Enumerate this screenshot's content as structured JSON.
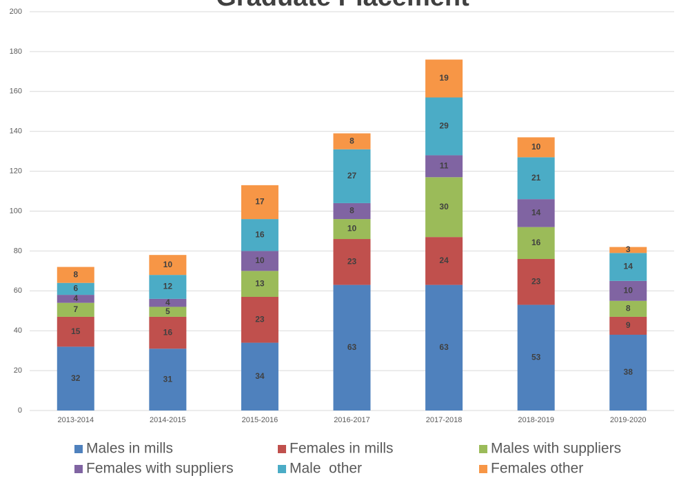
{
  "chart_data": {
    "type": "stacked_bar",
    "title": "Graduate Placement",
    "categories": [
      "2013-2014",
      "2014-2015",
      "2015-2016",
      "2016-2017",
      "2017-2018",
      "2018-2019",
      "2019-2020"
    ],
    "series": [
      {
        "name": "Males in mills",
        "color": "#4f81bd",
        "values": [
          32,
          31,
          34,
          63,
          63,
          53,
          38
        ]
      },
      {
        "name": "Females in mills",
        "color": "#c0504d",
        "values": [
          15,
          16,
          23,
          23,
          24,
          23,
          9
        ]
      },
      {
        "name": "Males with suppliers",
        "color": "#9bbb59",
        "values": [
          7,
          5,
          13,
          10,
          30,
          16,
          8
        ]
      },
      {
        "name": "Females with suppliers",
        "color": "#8064a2",
        "values": [
          4,
          4,
          10,
          8,
          11,
          14,
          10
        ]
      },
      {
        "name": "Male  other",
        "color": "#4bacc6",
        "values": [
          6,
          12,
          16,
          27,
          29,
          21,
          14
        ]
      },
      {
        "name": "Females other",
        "color": "#f79646",
        "values": [
          8,
          10,
          17,
          8,
          19,
          10,
          3
        ]
      }
    ],
    "ylim": [
      0,
      200
    ],
    "yticks": [
      0,
      20,
      40,
      60,
      80,
      100,
      120,
      140,
      160,
      180,
      200
    ],
    "grid": true,
    "legend": "bottom"
  }
}
